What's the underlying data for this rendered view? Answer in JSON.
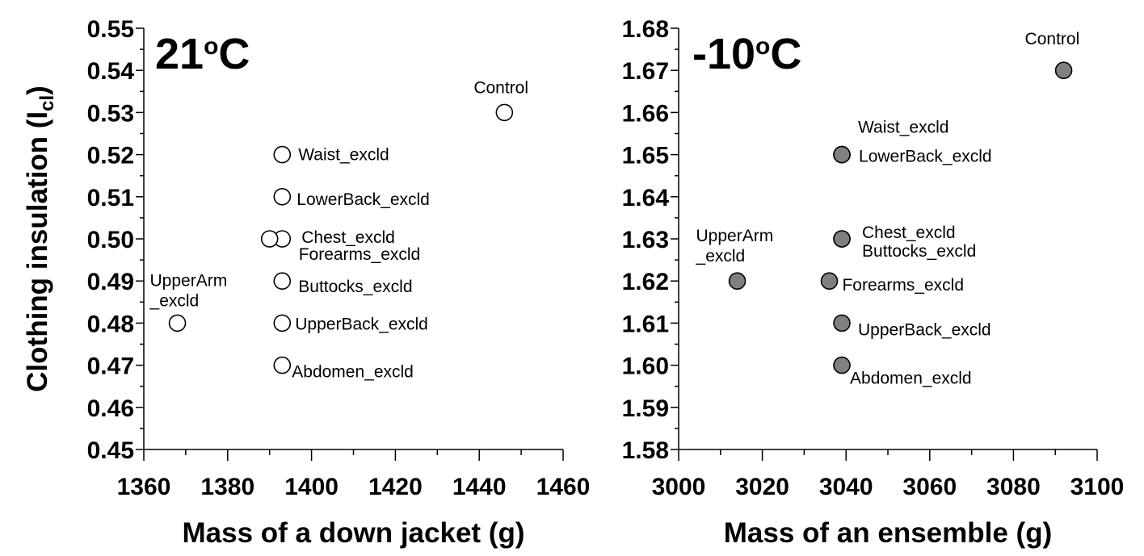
{
  "chart_data": [
    {
      "type": "scatter",
      "title": "21",
      "title_degree_mark": "o",
      "title_unit": "C",
      "xlabel": "Mass of a down jacket (g)",
      "ylabel_main": "Clothing insulation (I",
      "ylabel_subscript": "cl",
      "ylabel_end": ")",
      "xlim": [
        1360,
        1460
      ],
      "ylim": [
        0.45,
        0.55
      ],
      "x_ticks": [
        "1360",
        "1380",
        "1400",
        "1420",
        "1440",
        "1460"
      ],
      "y_ticks": [
        "0.45",
        "0.46",
        "0.47",
        "0.48",
        "0.49",
        "0.50",
        "0.51",
        "0.52",
        "0.53",
        "0.54",
        "0.55"
      ],
      "marker_fill": "#ffffff",
      "grid": false,
      "points": [
        {
          "label": "Control",
          "x": 1446,
          "y": 0.53
        },
        {
          "label": "Waist_excld",
          "x": 1393,
          "y": 0.52
        },
        {
          "label": "LowerBack_excld",
          "x": 1393,
          "y": 0.51
        },
        {
          "label": "Chest_excld",
          "x": 1393,
          "y": 0.5
        },
        {
          "label": "Forearms_excld",
          "x": 1390,
          "y": 0.5
        },
        {
          "label": "Buttocks_excld",
          "x": 1393,
          "y": 0.49
        },
        {
          "label": "UpperBack_excld",
          "x": 1393,
          "y": 0.48
        },
        {
          "label": "Abdomen_excld",
          "x": 1393,
          "y": 0.47
        },
        {
          "label": "UpperArm\n_excld",
          "x": 1368,
          "y": 0.48
        }
      ]
    },
    {
      "type": "scatter",
      "title": "-10",
      "title_degree_mark": "o",
      "title_unit": "C",
      "xlabel": "Mass of an ensemble (g)",
      "xlim": [
        3000,
        3100
      ],
      "ylim": [
        1.58,
        1.68
      ],
      "x_ticks": [
        "3000",
        "3020",
        "3040",
        "3060",
        "3080",
        "3100"
      ],
      "y_ticks": [
        "1.58",
        "1.59",
        "1.60",
        "1.61",
        "1.62",
        "1.63",
        "1.64",
        "1.65",
        "1.66",
        "1.67",
        "1.68"
      ],
      "marker_fill": "#808080",
      "grid": false,
      "points": [
        {
          "label": "Control",
          "x": 3092,
          "y": 1.67
        },
        {
          "label": "Waist_excld",
          "x": 3039,
          "y": 1.65
        },
        {
          "label": "LowerBack_excld",
          "x": 3039,
          "y": 1.65
        },
        {
          "label": "Chest_excld",
          "x": 3039,
          "y": 1.63
        },
        {
          "label": "Buttocks_excld",
          "x": 3039,
          "y": 1.63
        },
        {
          "label": "Forearms_excld",
          "x": 3036,
          "y": 1.62
        },
        {
          "label": "UpperArm\n_excld",
          "x": 3014,
          "y": 1.62
        },
        {
          "label": "UpperBack_excld",
          "x": 3039,
          "y": 1.61
        },
        {
          "label": "Abdomen_excld",
          "x": 3039,
          "y": 1.6
        }
      ]
    }
  ]
}
